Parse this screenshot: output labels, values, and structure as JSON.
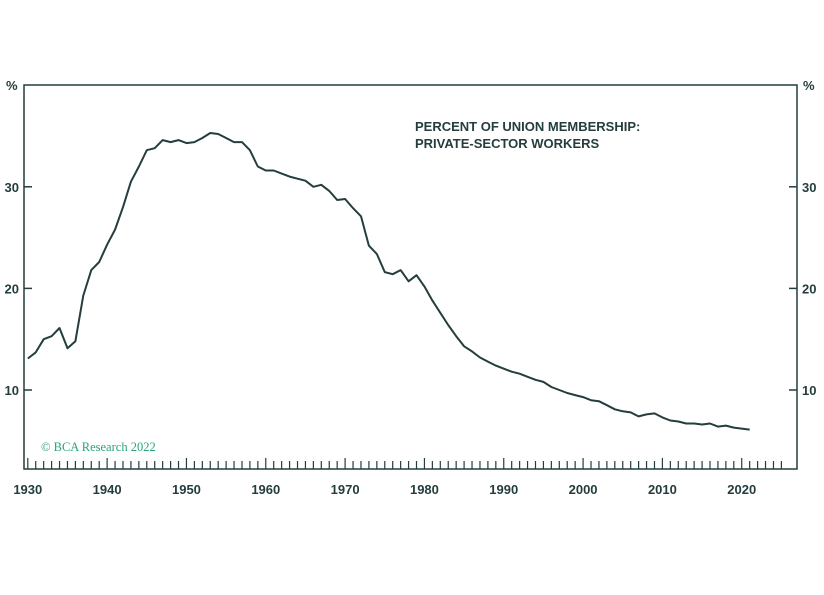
{
  "chart_data": {
    "type": "line",
    "title_lines": [
      "PERCENT OF UNION MEMBERSHIP:",
      "PRIVATE-SECTOR WORKERS"
    ],
    "credit": "© BCA Research 2022",
    "y_unit_left": "%",
    "y_unit_right": "%",
    "xlim": [
      1930,
      2025
    ],
    "ylim": [
      2,
      40
    ],
    "x_ticks": [
      1930,
      1940,
      1950,
      1960,
      1970,
      1980,
      1990,
      2000,
      2010,
      2020
    ],
    "y_ticks": [
      10,
      20,
      30
    ],
    "grid": false,
    "legend": "none",
    "colors": {
      "line": "#243d3d",
      "axis": "#243d3d",
      "text": "#243d3d",
      "credit": "#2aa37f"
    },
    "series": [
      {
        "x": [
          1930,
          1931,
          1932,
          1933,
          1934,
          1935,
          1936,
          1937,
          1938,
          1939,
          1940,
          1941,
          1942,
          1943,
          1944,
          1945,
          1946,
          1947,
          1948,
          1949,
          1950,
          1951,
          1952,
          1953,
          1954,
          1955,
          1956,
          1957,
          1958,
          1959,
          1960,
          1961,
          1962,
          1963,
          1964,
          1965,
          1966,
          1967,
          1968,
          1969,
          1970,
          1971,
          1972,
          1973,
          1974,
          1975,
          1976,
          1977,
          1978,
          1979,
          1980,
          1981,
          1982,
          1983,
          1984,
          1985,
          1986,
          1987,
          1988,
          1989,
          1990,
          1991,
          1992,
          1993,
          1994,
          1995,
          1996,
          1997,
          1998,
          1999,
          2000,
          2001,
          2002,
          2003,
          2004,
          2005,
          2006,
          2007,
          2008,
          2009,
          2010,
          2011,
          2012,
          2013,
          2014,
          2015,
          2016,
          2017,
          2018,
          2019,
          2020,
          2021
        ],
        "values": [
          13.1,
          13.7,
          15.0,
          15.3,
          16.1,
          14.1,
          14.8,
          19.3,
          21.8,
          22.6,
          24.3,
          25.8,
          28.0,
          30.5,
          32.0,
          33.6,
          33.8,
          34.6,
          34.4,
          34.6,
          34.3,
          34.4,
          34.8,
          35.3,
          35.2,
          34.8,
          34.4,
          34.4,
          33.6,
          32.0,
          31.6,
          31.6,
          31.3,
          31.0,
          30.8,
          30.6,
          30.0,
          30.2,
          29.6,
          28.7,
          28.8,
          27.9,
          27.1,
          24.2,
          23.4,
          21.6,
          21.4,
          21.8,
          20.7,
          21.3,
          20.2,
          18.8,
          17.6,
          16.4,
          15.3,
          14.3,
          13.8,
          13.2,
          12.8,
          12.4,
          12.1,
          11.8,
          11.6,
          11.3,
          11.0,
          10.8,
          10.3,
          10.0,
          9.7,
          9.5,
          9.3,
          9.0,
          8.9,
          8.5,
          8.1,
          7.9,
          7.8,
          7.4,
          7.6,
          7.7,
          7.3,
          7.0,
          6.9,
          6.7,
          6.7,
          6.6,
          6.7,
          6.4,
          6.5,
          6.3,
          6.2,
          6.1
        ]
      }
    ]
  }
}
